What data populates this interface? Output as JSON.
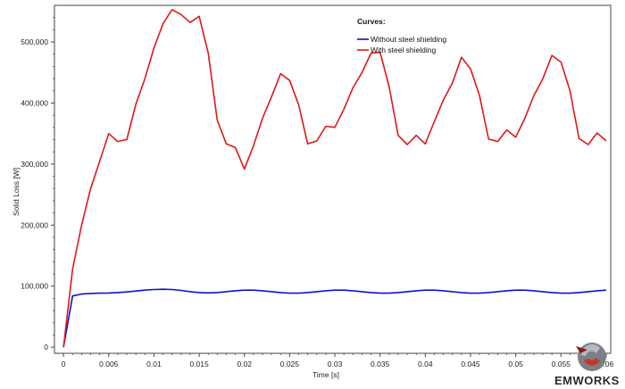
{
  "chart_data": {
    "type": "line",
    "title": "",
    "xlabel": "Time [s]",
    "ylabel": "Solid Loss [W]",
    "xlim": [
      -0.001,
      0.0605
    ],
    "ylim": [
      -10000,
      560000
    ],
    "x_ticks": [
      0,
      0.005,
      0.01,
      0.015,
      0.02,
      0.025,
      0.03,
      0.035,
      0.04,
      0.045,
      0.05,
      0.055,
      0.06
    ],
    "x_tick_labels": [
      "0",
      "0.005",
      "0.01",
      "0.015",
      "0.02",
      "0.025",
      "0.03",
      "0.035",
      "0.04",
      "0.045",
      "0.05",
      "0.055",
      "0.06"
    ],
    "y_ticks": [
      0,
      100000,
      200000,
      300000,
      400000,
      500000
    ],
    "y_tick_labels": [
      "0",
      "100,000",
      "200,000",
      "300,000",
      "400,000",
      "500,000"
    ],
    "grid": false,
    "legend_title": "Curves:",
    "legend_position": "top-right",
    "series": [
      {
        "name": "Without steel shielding",
        "color": "#1010cc",
        "x": [
          0,
          0.001,
          0.002,
          0.003,
          0.004,
          0.005,
          0.006,
          0.007,
          0.008,
          0.009,
          0.01,
          0.011,
          0.012,
          0.013,
          0.014,
          0.015,
          0.016,
          0.017,
          0.018,
          0.019,
          0.02,
          0.021,
          0.022,
          0.023,
          0.024,
          0.025,
          0.026,
          0.027,
          0.028,
          0.029,
          0.03,
          0.031,
          0.032,
          0.033,
          0.034,
          0.035,
          0.036,
          0.037,
          0.038,
          0.039,
          0.04,
          0.041,
          0.042,
          0.043,
          0.044,
          0.045,
          0.046,
          0.047,
          0.048,
          0.049,
          0.05,
          0.051,
          0.052,
          0.053,
          0.054,
          0.055,
          0.056,
          0.057,
          0.058,
          0.059,
          0.06
        ],
        "y": [
          0,
          84000,
          87000,
          88000,
          88500,
          88800,
          89500,
          90500,
          92000,
          93500,
          94500,
          95000,
          94500,
          93000,
          91000,
          89500,
          89000,
          89500,
          91000,
          92500,
          93500,
          93500,
          92500,
          91000,
          89500,
          88500,
          88500,
          89500,
          91000,
          92500,
          93500,
          93500,
          92500,
          91000,
          89500,
          88500,
          88500,
          89500,
          91000,
          92500,
          93500,
          93500,
          92500,
          91000,
          89500,
          88500,
          88500,
          89500,
          91000,
          92500,
          93500,
          93500,
          92500,
          91000,
          89500,
          88500,
          88500,
          89500,
          91000,
          92500,
          93500
        ]
      },
      {
        "name": "With steel shielding",
        "color": "#e01818",
        "x": [
          0,
          0.001,
          0.002,
          0.003,
          0.004,
          0.005,
          0.006,
          0.007,
          0.008,
          0.009,
          0.01,
          0.011,
          0.012,
          0.013,
          0.014,
          0.015,
          0.016,
          0.017,
          0.018,
          0.019,
          0.02,
          0.021,
          0.022,
          0.023,
          0.024,
          0.025,
          0.026,
          0.027,
          0.028,
          0.029,
          0.03,
          0.031,
          0.032,
          0.033,
          0.034,
          0.035,
          0.036,
          0.037,
          0.038,
          0.039,
          0.04,
          0.041,
          0.042,
          0.043,
          0.044,
          0.045,
          0.046,
          0.047,
          0.048,
          0.049,
          0.05,
          0.051,
          0.052,
          0.053,
          0.054,
          0.055,
          0.056,
          0.057,
          0.058,
          0.059,
          0.06
        ],
        "y": [
          0,
          128000,
          200000,
          260000,
          305000,
          350000,
          337000,
          340000,
          398000,
          440000,
          490000,
          530000,
          553000,
          545000,
          532000,
          542000,
          482000,
          372000,
          333000,
          327000,
          292000,
          330000,
          375000,
          410000,
          448000,
          437000,
          397000,
          333000,
          338000,
          362000,
          360000,
          390000,
          425000,
          450000,
          482000,
          483000,
          427000,
          347000,
          332000,
          347000,
          333000,
          370000,
          405000,
          433000,
          475000,
          456000,
          412000,
          341000,
          337000,
          356000,
          344000,
          375000,
          412000,
          440000,
          478000,
          467000,
          420000,
          342000,
          332000,
          351000,
          338000
        ]
      }
    ]
  },
  "branding": {
    "logo_text": "EMWORKS"
  },
  "colors": {
    "axis": "#444444",
    "background": "#ffffff"
  }
}
